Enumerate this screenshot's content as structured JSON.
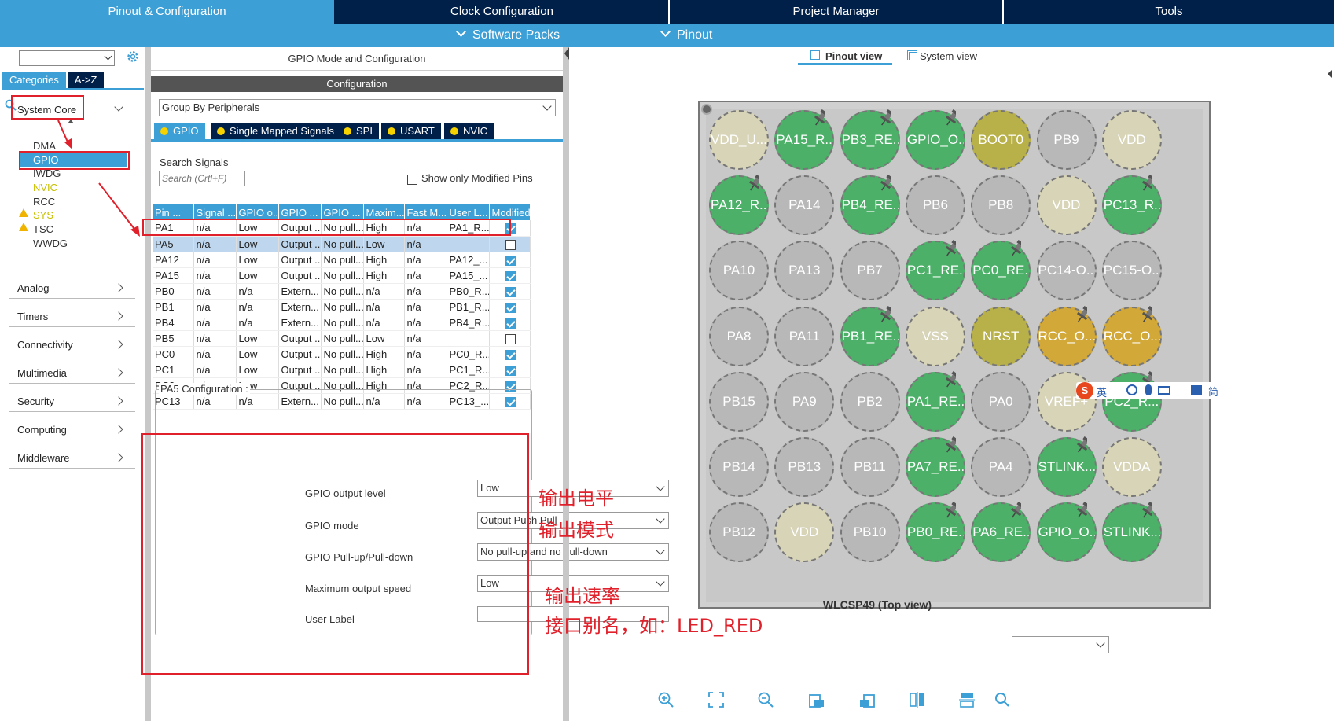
{
  "topnav": {
    "tabs": [
      "Pinout & Configuration",
      "Clock Configuration",
      "Project Manager",
      "Tools"
    ],
    "menus": [
      "Software Packs",
      "Pinout"
    ]
  },
  "sidebar": {
    "tab_categories": "Categories",
    "tab_az": "A->Z",
    "system_core": "System Core",
    "system_core_items": [
      "DMA",
      "GPIO",
      "IWDG",
      "NVIC",
      "RCC",
      "SYS",
      "TSC",
      "WWDG"
    ],
    "categories": [
      "Analog",
      "Timers",
      "Connectivity",
      "Multimedia",
      "Security",
      "Computing",
      "Middleware"
    ]
  },
  "middle": {
    "title": "GPIO Mode and Configuration",
    "config_bar": "Configuration",
    "group_by": "Group By Peripherals",
    "tabs": [
      "GPIO",
      "Single Mapped Signals",
      "SPI",
      "USART",
      "NVIC"
    ],
    "search_label": "Search Signals",
    "search_placeholder": "Search (Crtl+F)",
    "show_modified": "Show only Modified Pins",
    "columns": [
      "Pin ...",
      "Signal ...",
      "GPIO o...",
      "GPIO ...",
      "GPIO ...",
      "Maxim...",
      "Fast M...",
      "User L...",
      "Modified"
    ],
    "rows": [
      {
        "pin": "PA1",
        "signal": "n/a",
        "level": "Low",
        "mode": "Output ...",
        "pull": "No pull...",
        "speed": "High",
        "fast": "n/a",
        "label": "PA1_R...",
        "modified": true
      },
      {
        "pin": "PA5",
        "signal": "n/a",
        "level": "Low",
        "mode": "Output ...",
        "pull": "No pull...",
        "speed": "Low",
        "fast": "n/a",
        "label": "",
        "modified": false
      },
      {
        "pin": "PA12",
        "signal": "n/a",
        "level": "Low",
        "mode": "Output ...",
        "pull": "No pull...",
        "speed": "High",
        "fast": "n/a",
        "label": "PA12_...",
        "modified": true
      },
      {
        "pin": "PA15",
        "signal": "n/a",
        "level": "Low",
        "mode": "Output ...",
        "pull": "No pull...",
        "speed": "High",
        "fast": "n/a",
        "label": "PA15_...",
        "modified": true
      },
      {
        "pin": "PB0",
        "signal": "n/a",
        "level": "n/a",
        "mode": "Extern...",
        "pull": "No pull...",
        "speed": "n/a",
        "fast": "n/a",
        "label": "PB0_R...",
        "modified": true
      },
      {
        "pin": "PB1",
        "signal": "n/a",
        "level": "n/a",
        "mode": "Extern...",
        "pull": "No pull...",
        "speed": "n/a",
        "fast": "n/a",
        "label": "PB1_R...",
        "modified": true
      },
      {
        "pin": "PB4",
        "signal": "n/a",
        "level": "n/a",
        "mode": "Extern...",
        "pull": "No pull...",
        "speed": "n/a",
        "fast": "n/a",
        "label": "PB4_R...",
        "modified": true
      },
      {
        "pin": "PB5",
        "signal": "n/a",
        "level": "Low",
        "mode": "Output ...",
        "pull": "No pull...",
        "speed": "Low",
        "fast": "n/a",
        "label": "",
        "modified": false
      },
      {
        "pin": "PC0",
        "signal": "n/a",
        "level": "Low",
        "mode": "Output ...",
        "pull": "No pull...",
        "speed": "High",
        "fast": "n/a",
        "label": "PC0_R...",
        "modified": true
      },
      {
        "pin": "PC1",
        "signal": "n/a",
        "level": "Low",
        "mode": "Output ...",
        "pull": "No pull...",
        "speed": "High",
        "fast": "n/a",
        "label": "PC1_R...",
        "modified": true
      },
      {
        "pin": "PC2",
        "signal": "n/a",
        "level": "Low",
        "mode": "Output ...",
        "pull": "No pull...",
        "speed": "High",
        "fast": "n/a",
        "label": "PC2_R...",
        "modified": true
      },
      {
        "pin": "PC13",
        "signal": "n/a",
        "level": "n/a",
        "mode": "Extern...",
        "pull": "No pull...",
        "speed": "n/a",
        "fast": "n/a",
        "label": "PC13_...",
        "modified": true
      }
    ],
    "pa5_config": {
      "title": "PA5 Configuration :",
      "output_level_label": "GPIO output level",
      "output_level": "Low",
      "mode_label": "GPIO mode",
      "mode": "Output Push Pull",
      "pull_label": "GPIO Pull-up/Pull-down",
      "pull": "No pull-up and no pull-down",
      "speed_label": "Maximum output speed",
      "speed": "Low",
      "user_label_label": "User Label",
      "user_label": ""
    }
  },
  "annotations": [
    "输出电平",
    "输出模式",
    "输出速率",
    "接口别名，如：LED_RED"
  ],
  "right": {
    "view_tabs": [
      "Pinout view",
      "System view"
    ],
    "package": "WLCSP49 (Top view)",
    "pins": [
      [
        [
          "VDD_U...",
          "beige",
          false
        ],
        [
          "PA15_R...",
          "green",
          true
        ],
        [
          "PB3_RE...",
          "green",
          true
        ],
        [
          "GPIO_O...",
          "green",
          true
        ],
        [
          "BOOT0",
          "olive",
          false
        ],
        [
          "PB9",
          "gray",
          false
        ],
        [
          "VDD",
          "beige",
          false
        ]
      ],
      [
        [
          "PA12_R...",
          "green",
          true
        ],
        [
          "PA14",
          "gray",
          false
        ],
        [
          "PB4_RE...",
          "green",
          true
        ],
        [
          "PB6",
          "gray",
          false
        ],
        [
          "PB8",
          "gray",
          false
        ],
        [
          "VDD",
          "beige",
          false
        ],
        [
          "PC13_R...",
          "green",
          true
        ]
      ],
      [
        [
          "PA10",
          "gray",
          false
        ],
        [
          "PA13",
          "gray",
          false
        ],
        [
          "PB7",
          "gray",
          false
        ],
        [
          "PC1_RE...",
          "green",
          true
        ],
        [
          "PC0_RE...",
          "green",
          true
        ],
        [
          "PC14-O...",
          "gray",
          false
        ],
        [
          "PC15-O...",
          "gray",
          false
        ]
      ],
      [
        [
          "PA8",
          "gray",
          false
        ],
        [
          "PA11",
          "gray",
          false
        ],
        [
          "PB1_RE...",
          "green",
          true
        ],
        [
          "VSS",
          "beige",
          false
        ],
        [
          "NRST",
          "olive",
          false
        ],
        [
          "RCC_O...",
          "orange",
          true
        ],
        [
          "RCC_O...",
          "orange",
          true
        ]
      ],
      [
        [
          "PB15",
          "gray",
          false
        ],
        [
          "PA9",
          "gray",
          false
        ],
        [
          "PB2",
          "gray",
          false
        ],
        [
          "PA1_RE...",
          "green",
          true
        ],
        [
          "PA0",
          "gray",
          false
        ],
        [
          "VREF+",
          "beige",
          false
        ],
        [
          "PC2_R...",
          "green",
          true
        ]
      ],
      [
        [
          "PB14",
          "gray",
          false
        ],
        [
          "PB13",
          "gray",
          false
        ],
        [
          "PB11",
          "gray",
          false
        ],
        [
          "PA7_RE...",
          "green",
          true
        ],
        [
          "PA4",
          "gray",
          false
        ],
        [
          "STLINK...",
          "green",
          true
        ],
        [
          "VDDA",
          "beige",
          false
        ]
      ],
      [
        [
          "PB12",
          "gray",
          false
        ],
        [
          "VDD",
          "beige",
          false
        ],
        [
          "PB10",
          "gray",
          false
        ],
        [
          "PB0_RE...",
          "green",
          true
        ],
        [
          "PA6_RE...",
          "green",
          true
        ],
        [
          "GPIO_O...",
          "green",
          true
        ],
        [
          "STLINK...",
          "green",
          true
        ]
      ]
    ],
    "ime_label": "英"
  }
}
